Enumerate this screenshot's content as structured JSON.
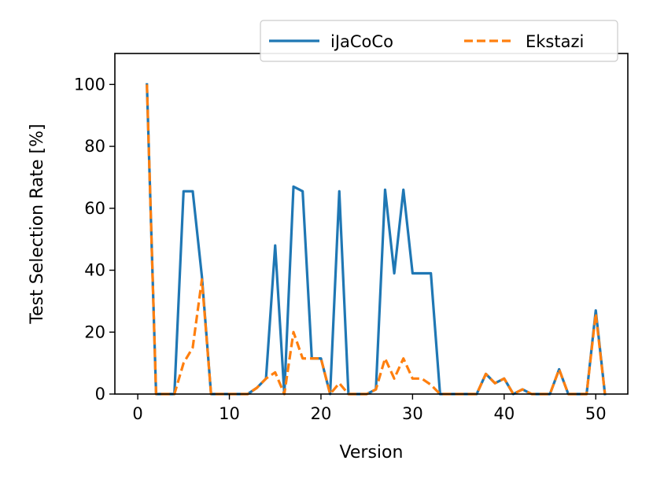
{
  "chart_data": {
    "type": "line",
    "xlabel": "Version",
    "ylabel": "Test Selection Rate [%]",
    "xlim": [
      -2.5,
      53.5
    ],
    "ylim": [
      0,
      110
    ],
    "xticks": [
      0,
      10,
      20,
      30,
      40,
      50
    ],
    "yticks": [
      0,
      20,
      40,
      60,
      80,
      100
    ],
    "grid": false,
    "legend_position": "upper-right",
    "x": [
      1,
      2,
      3,
      4,
      5,
      6,
      7,
      8,
      9,
      10,
      11,
      12,
      13,
      14,
      15,
      16,
      17,
      18,
      19,
      20,
      21,
      22,
      23,
      24,
      25,
      26,
      27,
      28,
      29,
      30,
      31,
      32,
      33,
      34,
      35,
      36,
      37,
      38,
      39,
      40,
      41,
      42,
      43,
      44,
      45,
      46,
      47,
      48,
      49,
      50,
      51
    ],
    "series": [
      {
        "name": "iJaCoCo",
        "color": "#1f77b4",
        "style": "solid",
        "values": [
          100,
          0,
          0,
          0,
          65.5,
          65.5,
          38,
          0,
          0,
          0,
          0,
          0,
          2,
          5,
          48,
          0,
          67,
          65.5,
          11.5,
          11.5,
          0,
          65.5,
          0,
          0,
          0,
          1.5,
          66,
          39,
          66,
          39,
          39,
          39,
          0,
          0,
          0,
          0,
          0,
          6.5,
          3.5,
          5,
          0,
          1.5,
          0,
          0,
          0,
          8,
          0,
          0,
          0,
          27,
          0
        ]
      },
      {
        "name": "Ekstazi",
        "color": "#ff7f0e",
        "style": "dashed",
        "values": [
          100,
          0,
          0,
          0,
          10,
          15,
          37,
          0,
          0,
          0,
          0,
          0,
          2,
          5,
          7,
          0,
          20,
          11.5,
          11.5,
          11.5,
          0,
          3.5,
          0,
          0,
          0,
          1.5,
          11.5,
          5,
          11.5,
          5,
          5,
          3,
          0,
          0,
          0,
          0,
          0,
          6.5,
          3.5,
          5,
          0,
          1.5,
          0,
          0,
          0,
          8,
          0,
          0,
          0,
          26,
          0
        ]
      }
    ]
  }
}
